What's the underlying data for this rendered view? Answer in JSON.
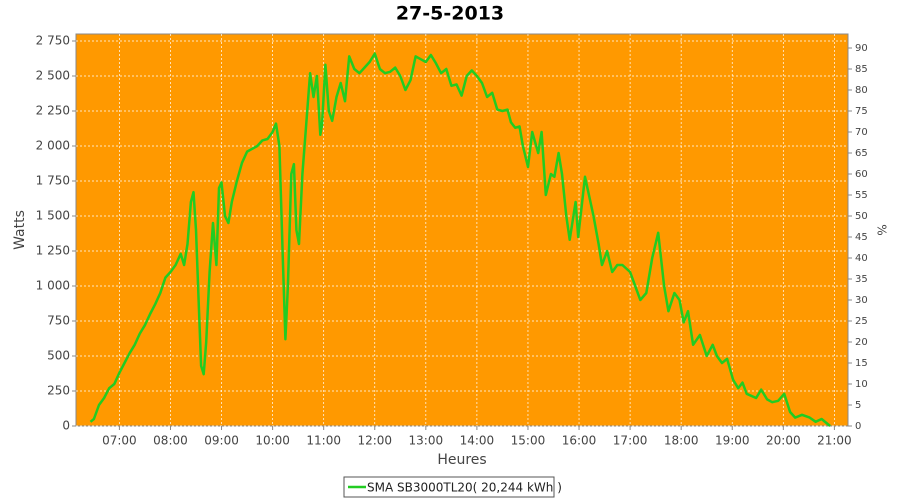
{
  "chart_data": {
    "type": "line",
    "title": "27-5-2013",
    "x_label": "Heures",
    "y_label": "Watts",
    "y2_label": "%",
    "x": [
      "06:26",
      "06:30",
      "06:36",
      "06:42",
      "06:48",
      "06:54",
      "07:00",
      "07:06",
      "07:12",
      "07:18",
      "07:24",
      "07:30",
      "07:36",
      "07:42",
      "07:48",
      "07:54",
      "08:00",
      "08:06",
      "08:12",
      "08:16",
      "08:20",
      "08:24",
      "08:27",
      "08:30",
      "08:33",
      "08:36",
      "08:39",
      "08:42",
      "08:46",
      "08:50",
      "08:54",
      "08:57",
      "09:00",
      "09:04",
      "09:08",
      "09:12",
      "09:18",
      "09:24",
      "09:30",
      "09:36",
      "09:42",
      "09:48",
      "09:54",
      "10:00",
      "10:04",
      "10:08",
      "10:12",
      "10:15",
      "10:18",
      "10:22",
      "10:25",
      "10:28",
      "10:31",
      "10:35",
      "10:40",
      "10:44",
      "10:48",
      "10:52",
      "10:56",
      "10:58",
      "11:02",
      "11:06",
      "11:10",
      "11:15",
      "11:20",
      "11:25",
      "11:30",
      "11:36",
      "11:42",
      "11:48",
      "11:54",
      "12:00",
      "12:06",
      "12:12",
      "12:18",
      "12:24",
      "12:30",
      "12:36",
      "12:42",
      "12:48",
      "12:54",
      "13:00",
      "13:06",
      "13:12",
      "13:18",
      "13:24",
      "13:30",
      "13:36",
      "13:42",
      "13:48",
      "13:54",
      "14:00",
      "14:06",
      "14:12",
      "14:18",
      "14:24",
      "14:30",
      "14:36",
      "14:40",
      "14:45",
      "14:50",
      "14:54",
      "15:00",
      "15:05",
      "15:12",
      "15:16",
      "15:21",
      "15:27",
      "15:31",
      "15:36",
      "15:40",
      "15:45",
      "15:49",
      "15:56",
      "15:59",
      "16:07",
      "16:17",
      "16:23",
      "16:27",
      "16:33",
      "16:39",
      "16:45",
      "16:51",
      "17:00",
      "17:12",
      "17:19",
      "17:26",
      "17:33",
      "17:40",
      "17:45",
      "17:52",
      "17:58",
      "18:03",
      "18:08",
      "18:14",
      "18:22",
      "18:30",
      "18:37",
      "18:42",
      "18:48",
      "18:54",
      "19:01",
      "19:07",
      "19:12",
      "19:17",
      "19:28",
      "19:34",
      "19:41",
      "19:47",
      "19:54",
      "20:01",
      "20:08",
      "20:14",
      "20:22",
      "20:31",
      "20:38",
      "20:45",
      "20:55"
    ],
    "series": [
      {
        "name": "SMA SB3000TL20( 20,244 kWh )",
        "color": "#22cc22",
        "values": [
          30,
          50,
          150,
          200,
          270,
          300,
          380,
          450,
          520,
          580,
          660,
          720,
          800,
          870,
          950,
          1060,
          1100,
          1150,
          1230,
          1150,
          1300,
          1600,
          1670,
          1400,
          900,
          430,
          370,
          600,
          1100,
          1450,
          1150,
          1700,
          1740,
          1500,
          1450,
          1600,
          1750,
          1880,
          1960,
          1980,
          2000,
          2040,
          2050,
          2100,
          2160,
          2000,
          1200,
          620,
          1000,
          1800,
          1870,
          1400,
          1300,
          1800,
          2200,
          2520,
          2350,
          2500,
          2080,
          2150,
          2580,
          2250,
          2180,
          2350,
          2450,
          2320,
          2640,
          2550,
          2520,
          2560,
          2600,
          2660,
          2550,
          2520,
          2530,
          2560,
          2500,
          2400,
          2470,
          2640,
          2620,
          2600,
          2650,
          2590,
          2520,
          2550,
          2430,
          2440,
          2360,
          2500,
          2540,
          2500,
          2450,
          2350,
          2380,
          2260,
          2250,
          2260,
          2170,
          2130,
          2140,
          2000,
          1850,
          2100,
          1950,
          2100,
          1650,
          1800,
          1780,
          1950,
          1800,
          1500,
          1330,
          1600,
          1350,
          1780,
          1500,
          1300,
          1150,
          1250,
          1100,
          1150,
          1150,
          1100,
          900,
          950,
          1200,
          1380,
          1000,
          820,
          950,
          900,
          740,
          820,
          580,
          650,
          500,
          580,
          500,
          450,
          480,
          330,
          270,
          310,
          230,
          200,
          260,
          190,
          170,
          180,
          230,
          100,
          60,
          80,
          60,
          30,
          50,
          0
        ]
      }
    ],
    "xlim": [
      "06:09",
      "21:16"
    ],
    "xticks": [
      "07:00",
      "08:00",
      "09:00",
      "10:00",
      "11:00",
      "12:00",
      "13:00",
      "14:00",
      "15:00",
      "16:00",
      "17:00",
      "18:00",
      "19:00",
      "20:00",
      "21:00"
    ],
    "ylim": [
      0,
      2800
    ],
    "yticks": [
      0,
      250,
      500,
      750,
      {
        "value": 1000,
        "label": "1 000"
      },
      {
        "value": 1250,
        "label": "1 250"
      },
      {
        "value": 1500,
        "label": "1 500"
      },
      {
        "value": 1750,
        "label": "1 750"
      },
      {
        "value": 2000,
        "label": "2 000"
      },
      {
        "value": 2250,
        "label": "2 250"
      },
      {
        "value": 2500,
        "label": "2 500"
      },
      {
        "value": 2750,
        "label": "2 750"
      }
    ],
    "y2lim": [
      0,
      93.33
    ],
    "y2ticks": [
      0,
      5,
      10,
      15,
      20,
      25,
      30,
      35,
      40,
      45,
      50,
      55,
      60,
      65,
      70,
      75,
      80,
      85,
      90
    ],
    "grid": true,
    "plot_background": "#ff9900",
    "legend_position": "bottom"
  }
}
